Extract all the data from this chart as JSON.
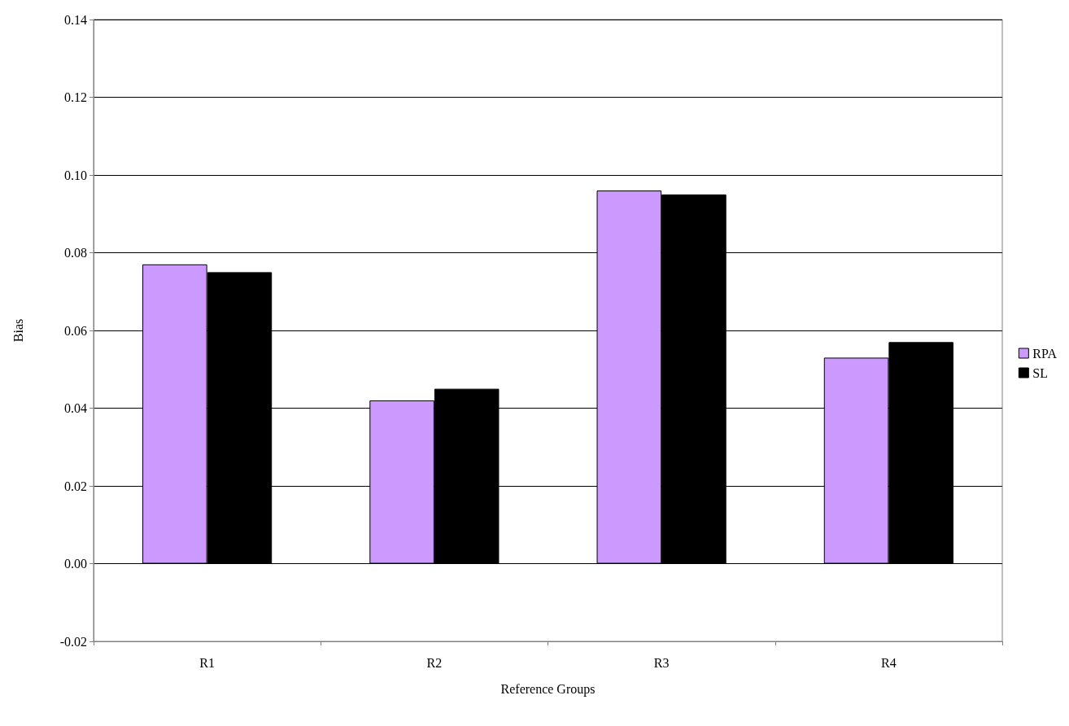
{
  "chart_data": {
    "type": "bar",
    "xlabel": "Reference Groups",
    "ylabel": "Bias",
    "categories": [
      "R1",
      "R2",
      "R3",
      "R4"
    ],
    "series": [
      {
        "name": "RPA",
        "color": "#cc99ff",
        "values": [
          0.077,
          0.042,
          0.096,
          0.053
        ]
      },
      {
        "name": "SL",
        "color": "#000000",
        "values": [
          0.075,
          0.045,
          0.095,
          0.057
        ]
      }
    ],
    "ylim": [
      -0.02,
      0.14
    ],
    "yticks": [
      {
        "value": -0.02,
        "label": "-0.02"
      },
      {
        "value": 0,
        "label": "0.00"
      },
      {
        "value": 0.02,
        "label": "0.02"
      },
      {
        "value": 0.04,
        "label": "0.04"
      },
      {
        "value": 0.06,
        "label": "0.06"
      },
      {
        "value": 0.08,
        "label": "0.08"
      },
      {
        "value": 0.1,
        "label": "0.10"
      },
      {
        "value": 0.12,
        "label": "0.12"
      },
      {
        "value": 0.14,
        "label": "0.14"
      }
    ],
    "grid": "y",
    "legend": "right"
  }
}
